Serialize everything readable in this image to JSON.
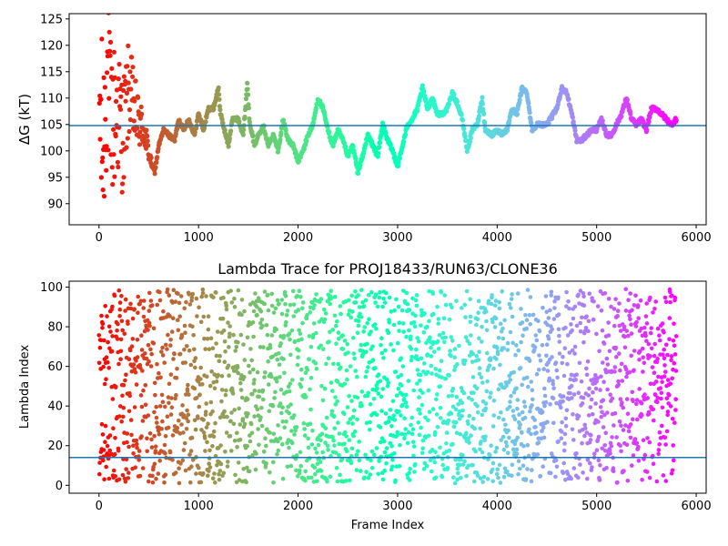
{
  "chart_data": [
    {
      "type": "scatter",
      "title": "",
      "xlabel": "",
      "ylabel": "ΔG (kT)",
      "xlim": [
        -300,
        6100
      ],
      "ylim": [
        86,
        126
      ],
      "xticks": [
        0,
        1000,
        2000,
        3000,
        4000,
        5000,
        6000
      ],
      "yticks": [
        90,
        95,
        100,
        105,
        110,
        115,
        120,
        125
      ],
      "reference_line": 104.8,
      "reference_color": "#1f77b4",
      "colormap": "rainbow (red at frame 0 to purple at last frame)",
      "frame_max": 5800,
      "trace_keyframes": [
        [
          0,
          110
        ],
        [
          40,
          100
        ],
        [
          80,
          115
        ],
        [
          120,
          105
        ],
        [
          180,
          108
        ],
        [
          240,
          103
        ],
        [
          300,
          112
        ],
        [
          380,
          106
        ],
        [
          450,
          104
        ],
        [
          520,
          98
        ],
        [
          560,
          96
        ],
        [
          600,
          101
        ],
        [
          650,
          104
        ],
        [
          700,
          103
        ],
        [
          760,
          102
        ],
        [
          800,
          106
        ],
        [
          850,
          104
        ],
        [
          900,
          106
        ],
        [
          960,
          103
        ],
        [
          1000,
          107
        ],
        [
          1050,
          104
        ],
        [
          1100,
          108
        ],
        [
          1150,
          108
        ],
        [
          1200,
          112
        ],
        [
          1220,
          107
        ],
        [
          1260,
          104
        ],
        [
          1300,
          101
        ],
        [
          1340,
          106
        ],
        [
          1400,
          106
        ],
        [
          1450,
          103
        ],
        [
          1490,
          113
        ],
        [
          1510,
          106
        ],
        [
          1560,
          101
        ],
        [
          1600,
          103
        ],
        [
          1650,
          105
        ],
        [
          1700,
          101
        ],
        [
          1750,
          103
        ],
        [
          1800,
          100
        ],
        [
          1850,
          106
        ],
        [
          1900,
          102
        ],
        [
          1950,
          101
        ],
        [
          2000,
          98
        ],
        [
          2050,
          100
        ],
        [
          2100,
          103
        ],
        [
          2150,
          105
        ],
        [
          2200,
          110
        ],
        [
          2250,
          108
        ],
        [
          2300,
          104
        ],
        [
          2350,
          101
        ],
        [
          2400,
          104
        ],
        [
          2450,
          102
        ],
        [
          2500,
          99
        ],
        [
          2550,
          101
        ],
        [
          2600,
          96
        ],
        [
          2650,
          99
        ],
        [
          2700,
          103
        ],
        [
          2750,
          101
        ],
        [
          2800,
          99
        ],
        [
          2850,
          105
        ],
        [
          2900,
          102
        ],
        [
          2950,
          100
        ],
        [
          3000,
          97
        ],
        [
          3050,
          101
        ],
        [
          3100,
          105
        ],
        [
          3150,
          106
        ],
        [
          3200,
          108
        ],
        [
          3250,
          112
        ],
        [
          3300,
          108
        ],
        [
          3350,
          110
        ],
        [
          3400,
          107
        ],
        [
          3450,
          107
        ],
        [
          3500,
          108
        ],
        [
          3550,
          111
        ],
        [
          3600,
          109
        ],
        [
          3650,
          106
        ],
        [
          3700,
          100
        ],
        [
          3750,
          104
        ],
        [
          3800,
          105
        ],
        [
          3850,
          110
        ],
        [
          3880,
          104
        ],
        [
          3950,
          103
        ],
        [
          4000,
          104
        ],
        [
          4050,
          103
        ],
        [
          4100,
          104
        ],
        [
          4150,
          108
        ],
        [
          4200,
          107
        ],
        [
          4250,
          112
        ],
        [
          4300,
          111
        ],
        [
          4350,
          104
        ],
        [
          4400,
          105
        ],
        [
          4500,
          105
        ],
        [
          4600,
          108
        ],
        [
          4650,
          112
        ],
        [
          4700,
          111
        ],
        [
          4750,
          107
        ],
        [
          4800,
          102
        ],
        [
          4850,
          102
        ],
        [
          4900,
          103
        ],
        [
          4950,
          104
        ],
        [
          5000,
          104
        ],
        [
          5050,
          106
        ],
        [
          5100,
          103
        ],
        [
          5150,
          103
        ],
        [
          5200,
          105
        ],
        [
          5250,
          107
        ],
        [
          5300,
          110
        ],
        [
          5350,
          106
        ],
        [
          5400,
          105
        ],
        [
          5450,
          106
        ],
        [
          5500,
          104
        ],
        [
          5550,
          108
        ],
        [
          5600,
          108
        ],
        [
          5650,
          107
        ],
        [
          5700,
          106
        ],
        [
          5750,
          105
        ],
        [
          5800,
          106
        ]
      ],
      "early_scatter_range": [
        86,
        126
      ],
      "points_count": 1450
    },
    {
      "type": "scatter",
      "title": "Lambda Trace for PROJ18433/RUN63/CLONE36",
      "xlabel": "Frame Index",
      "ylabel": "Lambda Index",
      "xlim": [
        -300,
        6100
      ],
      "ylim": [
        -4,
        103
      ],
      "xticks": [
        0,
        1000,
        2000,
        3000,
        4000,
        5000,
        6000
      ],
      "yticks": [
        0,
        20,
        40,
        60,
        80,
        100
      ],
      "reference_line": 14,
      "reference_color": "#1f77b4",
      "colormap": "rainbow (red at frame 0 to purple at last frame)",
      "frame_max": 5800,
      "lambda_range": [
        1,
        99
      ],
      "points_count": 2400
    }
  ]
}
